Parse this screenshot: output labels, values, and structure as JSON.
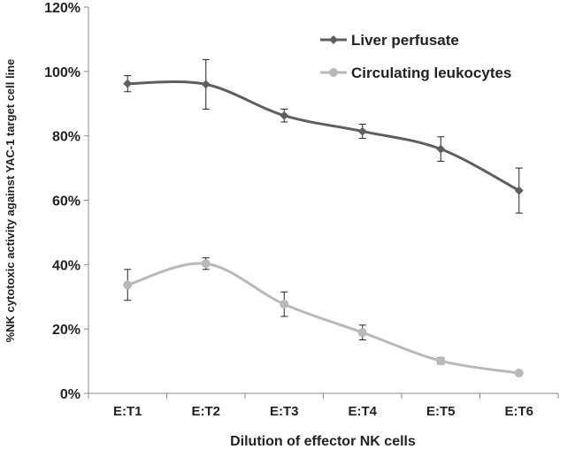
{
  "chart_data": {
    "type": "line",
    "title": "",
    "xlabel": "Dilution of effector NK cells",
    "ylabel": "%NK cytotoxic activity against YAC-1 target cell  line",
    "categories": [
      "E:T1",
      "E:T2",
      "E:T3",
      "E:T4",
      "E:T5",
      "E:T6"
    ],
    "ylim": [
      0,
      120
    ],
    "yticks": [
      "0%",
      "20%",
      "40%",
      "60%",
      "80%",
      "100%",
      "120%"
    ],
    "grid": false,
    "legend_position": "top-right",
    "series": [
      {
        "name": "Liver perfusate",
        "color": "#5f5f5f",
        "marker": "diamond",
        "values": [
          96.2,
          96.0,
          86.3,
          81.4,
          75.9,
          63.0
        ],
        "errors": [
          2.5,
          7.7,
          2.0,
          2.2,
          3.8,
          7.0
        ]
      },
      {
        "name": "Circulating leukocytes",
        "color": "#b9b9b9",
        "marker": "circle",
        "values": [
          33.7,
          40.3,
          27.7,
          18.9,
          10.1,
          6.3
        ],
        "errors": [
          4.8,
          1.8,
          3.8,
          2.3,
          1.0,
          0.5
        ]
      }
    ]
  }
}
